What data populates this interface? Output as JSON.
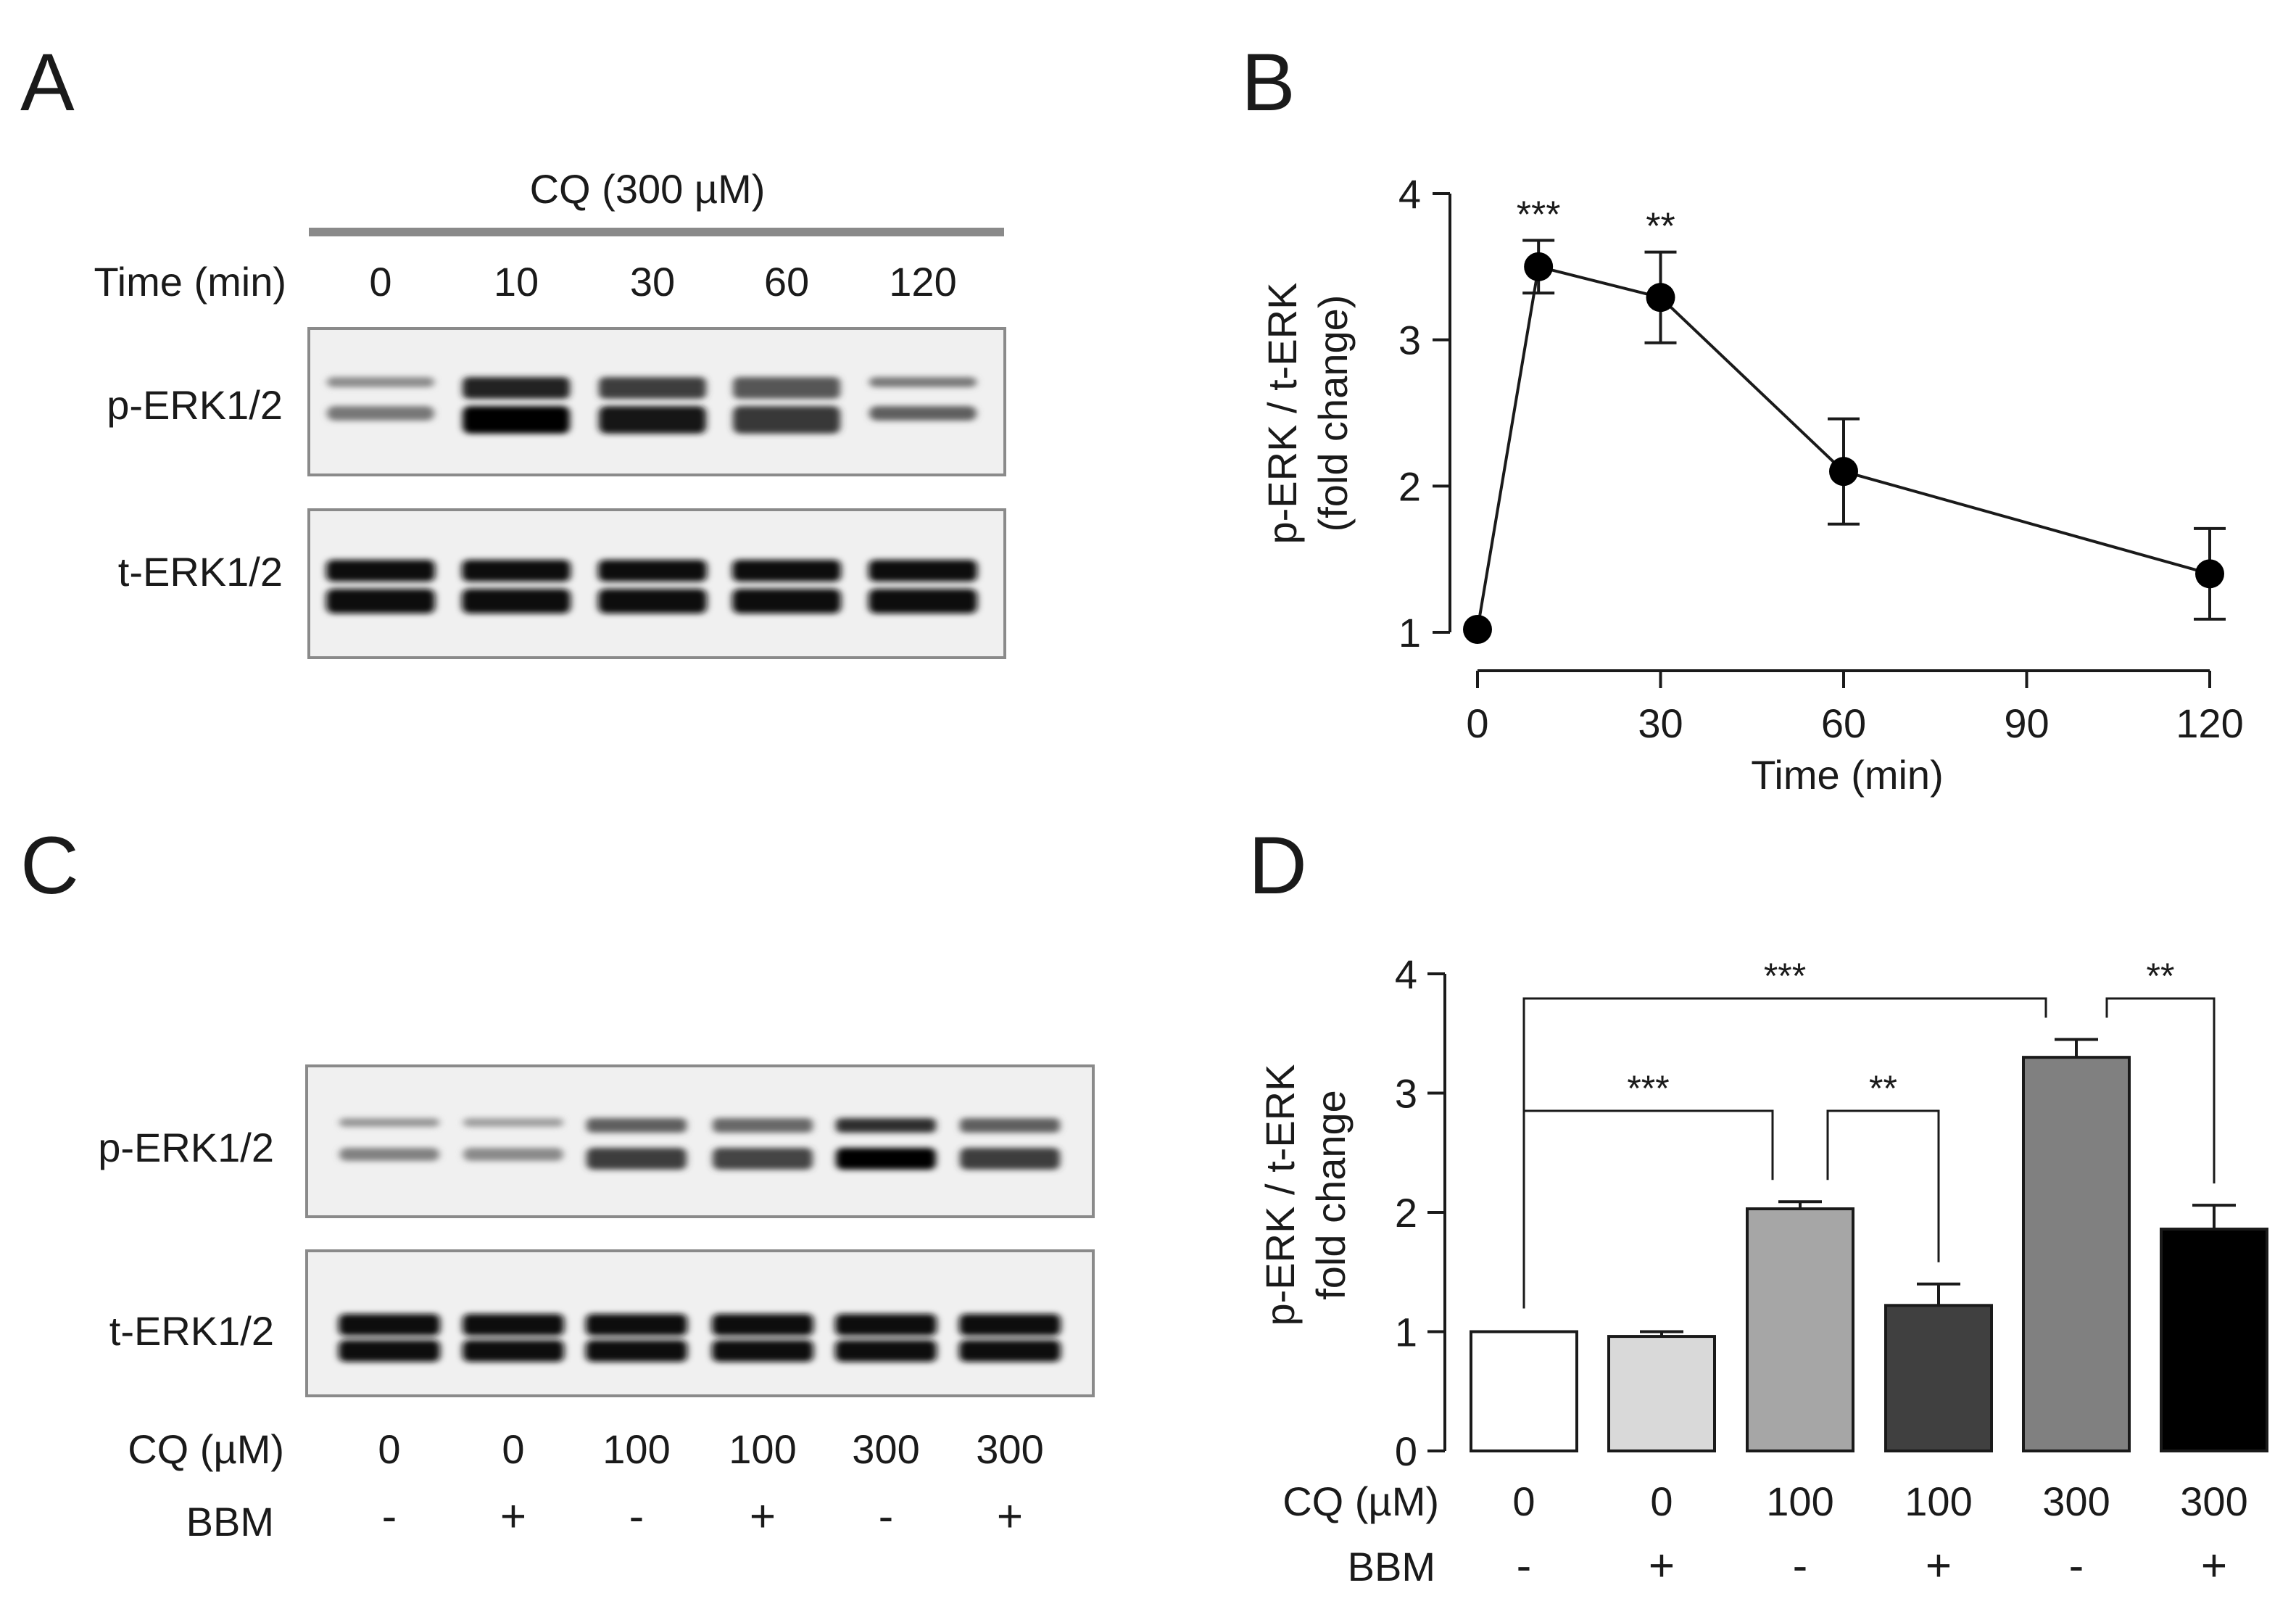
{
  "panels": {
    "a": "A",
    "b": "B",
    "c": "C",
    "d": "D"
  },
  "blot_a": {
    "treatment_label": "CQ (300 µM)",
    "row_label": "Time (min)",
    "lanes": [
      "0",
      "10",
      "30",
      "60",
      "120"
    ],
    "bands": [
      "p-ERK1/2",
      "t-ERK1/2"
    ],
    "p_erk_intensity": [
      0.45,
      1.0,
      0.85,
      0.72,
      0.55
    ]
  },
  "blot_c": {
    "bands": [
      "p-ERK1/2",
      "t-ERK1/2"
    ],
    "row_labels": [
      "CQ (µM)",
      "BBM"
    ],
    "cq": [
      "0",
      "0",
      "100",
      "100",
      "300",
      "300"
    ],
    "bbm": [
      "-",
      "+",
      "-",
      "+",
      "-",
      "+"
    ],
    "p_erk_intensity": [
      0.42,
      0.38,
      0.72,
      0.68,
      1.0,
      0.72
    ]
  },
  "chart_data": [
    {
      "type": "line",
      "panel": "B",
      "xlabel": "Time (min)",
      "ylabel_line1": "p-ERK / t-ERK",
      "ylabel_line2": "(fold change)",
      "xlim": [
        0,
        120
      ],
      "ylim": [
        1,
        4
      ],
      "xticks": [
        "0",
        "30",
        "60",
        "90",
        "120"
      ],
      "yticks": [
        "1",
        "2",
        "3",
        "4"
      ],
      "x": [
        0,
        10,
        30,
        60,
        120
      ],
      "y": [
        1.02,
        3.5,
        3.29,
        2.1,
        1.4
      ],
      "err": [
        0,
        0.18,
        0.31,
        0.36,
        0.31
      ],
      "annotations": [
        {
          "x": 10,
          "text": "***"
        },
        {
          "x": 30,
          "text": "**"
        }
      ]
    },
    {
      "type": "bar",
      "panel": "D",
      "ylabel_line1": "p-ERK / t-ERK",
      "ylabel_line2": "fold change",
      "ylim": [
        0,
        4
      ],
      "yticks": [
        "0",
        "1",
        "2",
        "3",
        "4"
      ],
      "categories": [
        "0 -",
        "0 +",
        "100 -",
        "100 +",
        "300 -",
        "300 +"
      ],
      "row_labels": [
        "CQ (µM)",
        "BBM"
      ],
      "cq": [
        "0",
        "0",
        "100",
        "100",
        "300",
        "300"
      ],
      "bbm": [
        "-",
        "+",
        "-",
        "+",
        "-",
        "+"
      ],
      "values": [
        1.0,
        0.96,
        2.03,
        1.22,
        3.3,
        1.86
      ],
      "err": [
        0,
        0.04,
        0.06,
        0.18,
        0.15,
        0.2
      ],
      "colors": [
        "#ffffff",
        "#d9d9d9",
        "#a6a6a6",
        "#404040",
        "#808080",
        "#000000"
      ],
      "significance": [
        {
          "from": 0,
          "to": 4,
          "text": "***"
        },
        {
          "from": 4,
          "to": 5,
          "text": "**"
        },
        {
          "from": 0,
          "to": 2,
          "text": "***"
        },
        {
          "from": 2,
          "to": 3,
          "text": "**"
        }
      ]
    }
  ]
}
